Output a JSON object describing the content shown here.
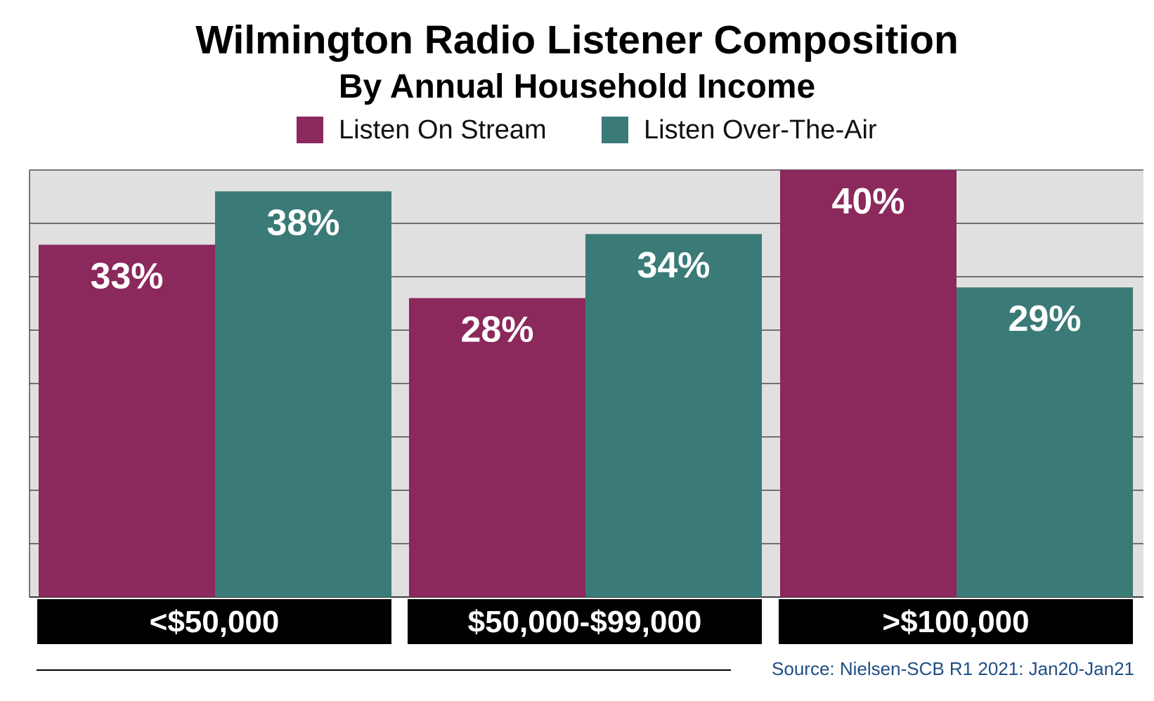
{
  "chart_data": {
    "type": "bar",
    "title": "Wilmington Radio Listener Composition",
    "subtitle": "By Annual Household Income",
    "categories": [
      "<$50,000",
      "$50,000-$99,000",
      ">$100,000"
    ],
    "series": [
      {
        "name": "Listen On Stream",
        "values": [
          33,
          28,
          40
        ],
        "labels": [
          "33%",
          "28%",
          "40%"
        ],
        "color": "#8b285c"
      },
      {
        "name": "Listen Over-The-Air",
        "values": [
          38,
          34,
          29
        ],
        "labels": [
          "38%",
          "34%",
          "29%"
        ],
        "color": "#3a7a77"
      }
    ],
    "ylim": [
      0,
      40
    ],
    "grid": true,
    "legend": "top-center",
    "xlabel": "",
    "ylabel": ""
  },
  "source": "Source: Nielsen-SCB R1 2021: Jan20-Jan21",
  "colors": {
    "plot_background": "#e0e0e0",
    "gridline": "#000000",
    "category_band": "#000000",
    "category_text": "#ffffff",
    "value_text": "#ffffff"
  }
}
